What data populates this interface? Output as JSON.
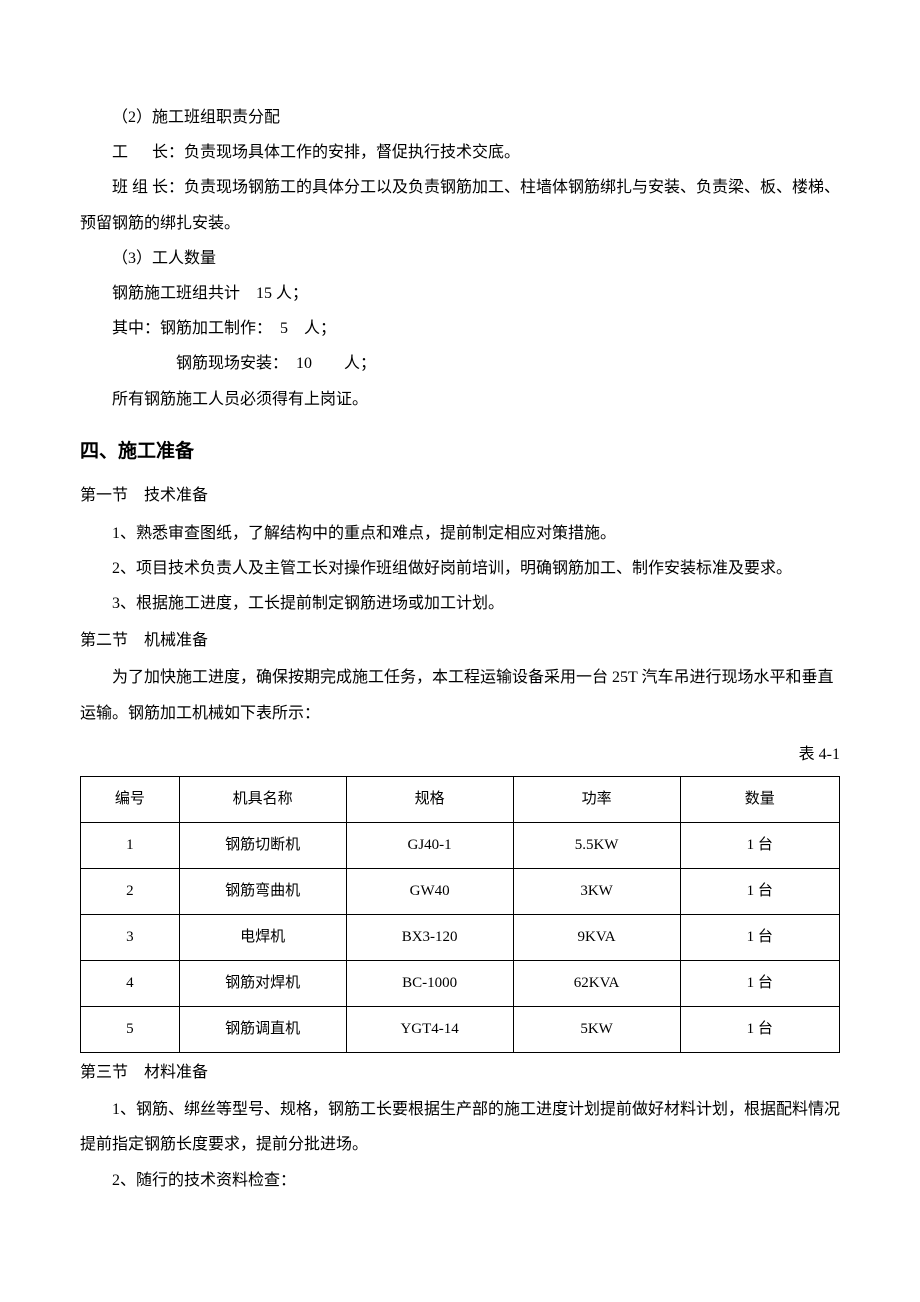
{
  "p1": "（2）施工班组职责分配",
  "p2_label": "工",
  "p2_label2": "长：",
  "p2_rest": "负责现场具体工作的安排，督促执行技术交底。",
  "p3": "班 组 长：负责现场钢筋工的具体分工以及负责钢筋加工、柱墙体钢筋绑扎与安装、负责梁、板、楼梯、预留钢筋的绑扎安装。",
  "p4": "（3）工人数量",
  "p5": "钢筋施工班组共计　15 人；",
  "p6": "其中：钢筋加工制作：　5　人；",
  "p7": "钢筋现场安装：　10　　人；",
  "p8": "所有钢筋施工人员必须得有上岗证。",
  "h1": "四、施工准备",
  "s1_title": "第一节　技术准备",
  "s1_p1": "1、熟悉审查图纸，了解结构中的重点和难点，提前制定相应对策措施。",
  "s1_p2": "2、项目技术负责人及主管工长对操作班组做好岗前培训，明确钢筋加工、制作安装标准及要求。",
  "s1_p3": "3、根据施工进度，工长提前制定钢筋进场或加工计划。",
  "s2_title": "第二节　机械准备",
  "s2_p1": "为了加快施工进度，确保按期完成施工任务，本工程运输设备采用一台 25T 汽车吊进行现场水平和垂直运输。钢筋加工机械如下表所示：",
  "table_label": "表 4-1",
  "table": {
    "columns": [
      "编号",
      "机具名称",
      "规格",
      "功率",
      "数量"
    ],
    "col_widths": [
      "13%",
      "22%",
      "22%",
      "22%",
      "21%"
    ],
    "rows": [
      [
        "1",
        "钢筋切断机",
        "GJ40-1",
        "5.5KW",
        "1 台"
      ],
      [
        "2",
        "钢筋弯曲机",
        "GW40",
        "3KW",
        "1 台"
      ],
      [
        "3",
        "电焊机",
        "BX3-120",
        "9KVA",
        "1 台"
      ],
      [
        "4",
        "钢筋对焊机",
        "BC-1000",
        "62KVA",
        "1 台"
      ],
      [
        "5",
        "钢筋调直机",
        "YGT4-14",
        "5KW",
        "1 台"
      ]
    ],
    "border_color": "#000000",
    "background_color": "#ffffff",
    "font_size": 15
  },
  "s3_title": "第三节　材料准备",
  "s3_p1": "1、钢筋、绑丝等型号、规格，钢筋工长要根据生产部的施工进度计划提前做好材料计划，根据配料情况提前指定钢筋长度要求，提前分批进场。",
  "s3_p2": "2、随行的技术资料检查："
}
